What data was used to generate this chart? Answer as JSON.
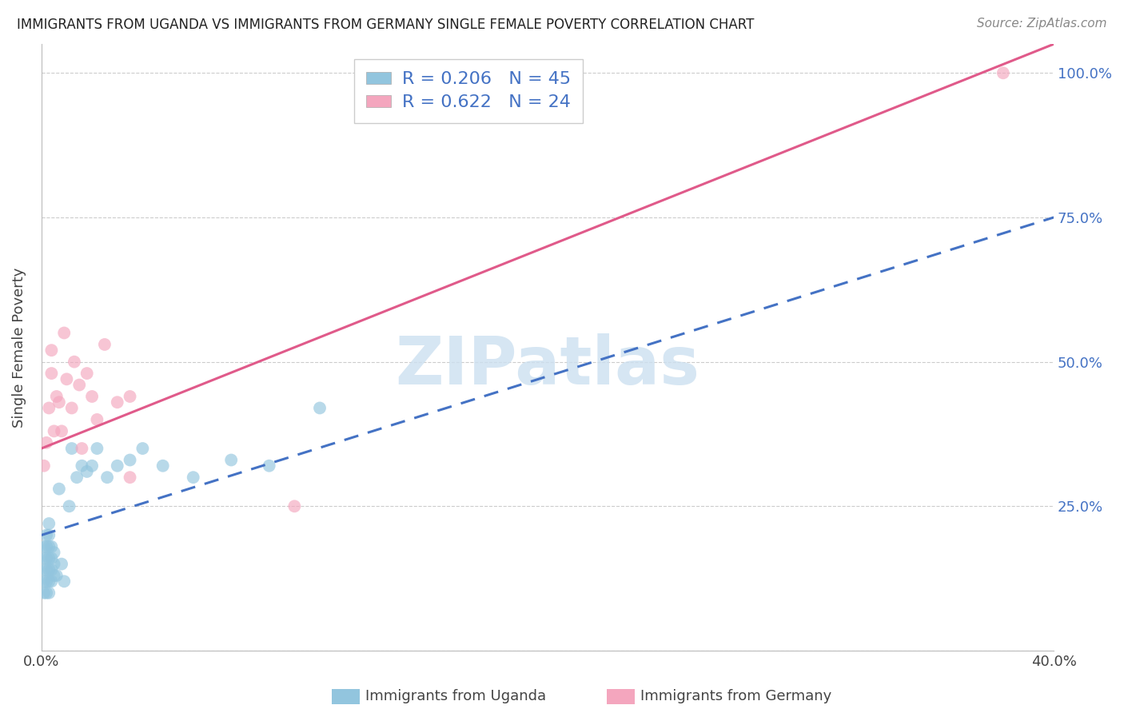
{
  "title": "IMMIGRANTS FROM UGANDA VS IMMIGRANTS FROM GERMANY SINGLE FEMALE POVERTY CORRELATION CHART",
  "source": "Source: ZipAtlas.com",
  "xlabel_blue": "Immigrants from Uganda",
  "xlabel_pink": "Immigrants from Germany",
  "ylabel": "Single Female Poverty",
  "xlim": [
    0.0,
    0.4
  ],
  "ylim": [
    0.0,
    1.05
  ],
  "x_tick_positions": [
    0.0,
    0.1,
    0.2,
    0.3,
    0.4
  ],
  "x_tick_labels": [
    "0.0%",
    "",
    "",
    "",
    "40.0%"
  ],
  "y_tick_positions": [
    0.0,
    0.25,
    0.5,
    0.75,
    1.0
  ],
  "y_tick_labels_right": [
    "",
    "25.0%",
    "50.0%",
    "75.0%",
    "100.0%"
  ],
  "blue_R": 0.206,
  "blue_N": 45,
  "pink_R": 0.622,
  "pink_N": 24,
  "blue_color": "#92c5de",
  "pink_color": "#f4a6be",
  "blue_line_color": "#4472c4",
  "pink_line_color": "#e05a8a",
  "grid_color": "#cccccc",
  "watermark_text": "ZIPatlas",
  "watermark_color": "#cce0f0",
  "blue_x": [
    0.001,
    0.001,
    0.001,
    0.001,
    0.001,
    0.002,
    0.002,
    0.002,
    0.002,
    0.002,
    0.002,
    0.003,
    0.003,
    0.003,
    0.003,
    0.003,
    0.003,
    0.003,
    0.004,
    0.004,
    0.004,
    0.004,
    0.005,
    0.005,
    0.005,
    0.006,
    0.007,
    0.008,
    0.009,
    0.011,
    0.012,
    0.014,
    0.016,
    0.018,
    0.02,
    0.022,
    0.026,
    0.03,
    0.035,
    0.04,
    0.048,
    0.06,
    0.075,
    0.09,
    0.11
  ],
  "blue_y": [
    0.1,
    0.12,
    0.14,
    0.16,
    0.18,
    0.1,
    0.12,
    0.14,
    0.16,
    0.18,
    0.2,
    0.1,
    0.12,
    0.14,
    0.16,
    0.18,
    0.2,
    0.22,
    0.12,
    0.14,
    0.16,
    0.18,
    0.13,
    0.15,
    0.17,
    0.13,
    0.28,
    0.15,
    0.12,
    0.25,
    0.35,
    0.3,
    0.32,
    0.31,
    0.32,
    0.35,
    0.3,
    0.32,
    0.33,
    0.35,
    0.32,
    0.3,
    0.33,
    0.32,
    0.42
  ],
  "pink_x": [
    0.001,
    0.002,
    0.003,
    0.004,
    0.004,
    0.005,
    0.006,
    0.007,
    0.008,
    0.009,
    0.01,
    0.012,
    0.013,
    0.015,
    0.016,
    0.018,
    0.02,
    0.022,
    0.025,
    0.03,
    0.035,
    0.035,
    0.1,
    0.38
  ],
  "pink_y": [
    0.32,
    0.36,
    0.42,
    0.48,
    0.52,
    0.38,
    0.44,
    0.43,
    0.38,
    0.55,
    0.47,
    0.42,
    0.5,
    0.46,
    0.35,
    0.48,
    0.44,
    0.4,
    0.53,
    0.43,
    0.44,
    0.3,
    0.25,
    1.0
  ],
  "blue_line_x": [
    0.0,
    0.4
  ],
  "blue_line_y": [
    0.2,
    0.75
  ],
  "pink_line_x": [
    0.0,
    0.4
  ],
  "pink_line_y": [
    0.35,
    1.05
  ]
}
